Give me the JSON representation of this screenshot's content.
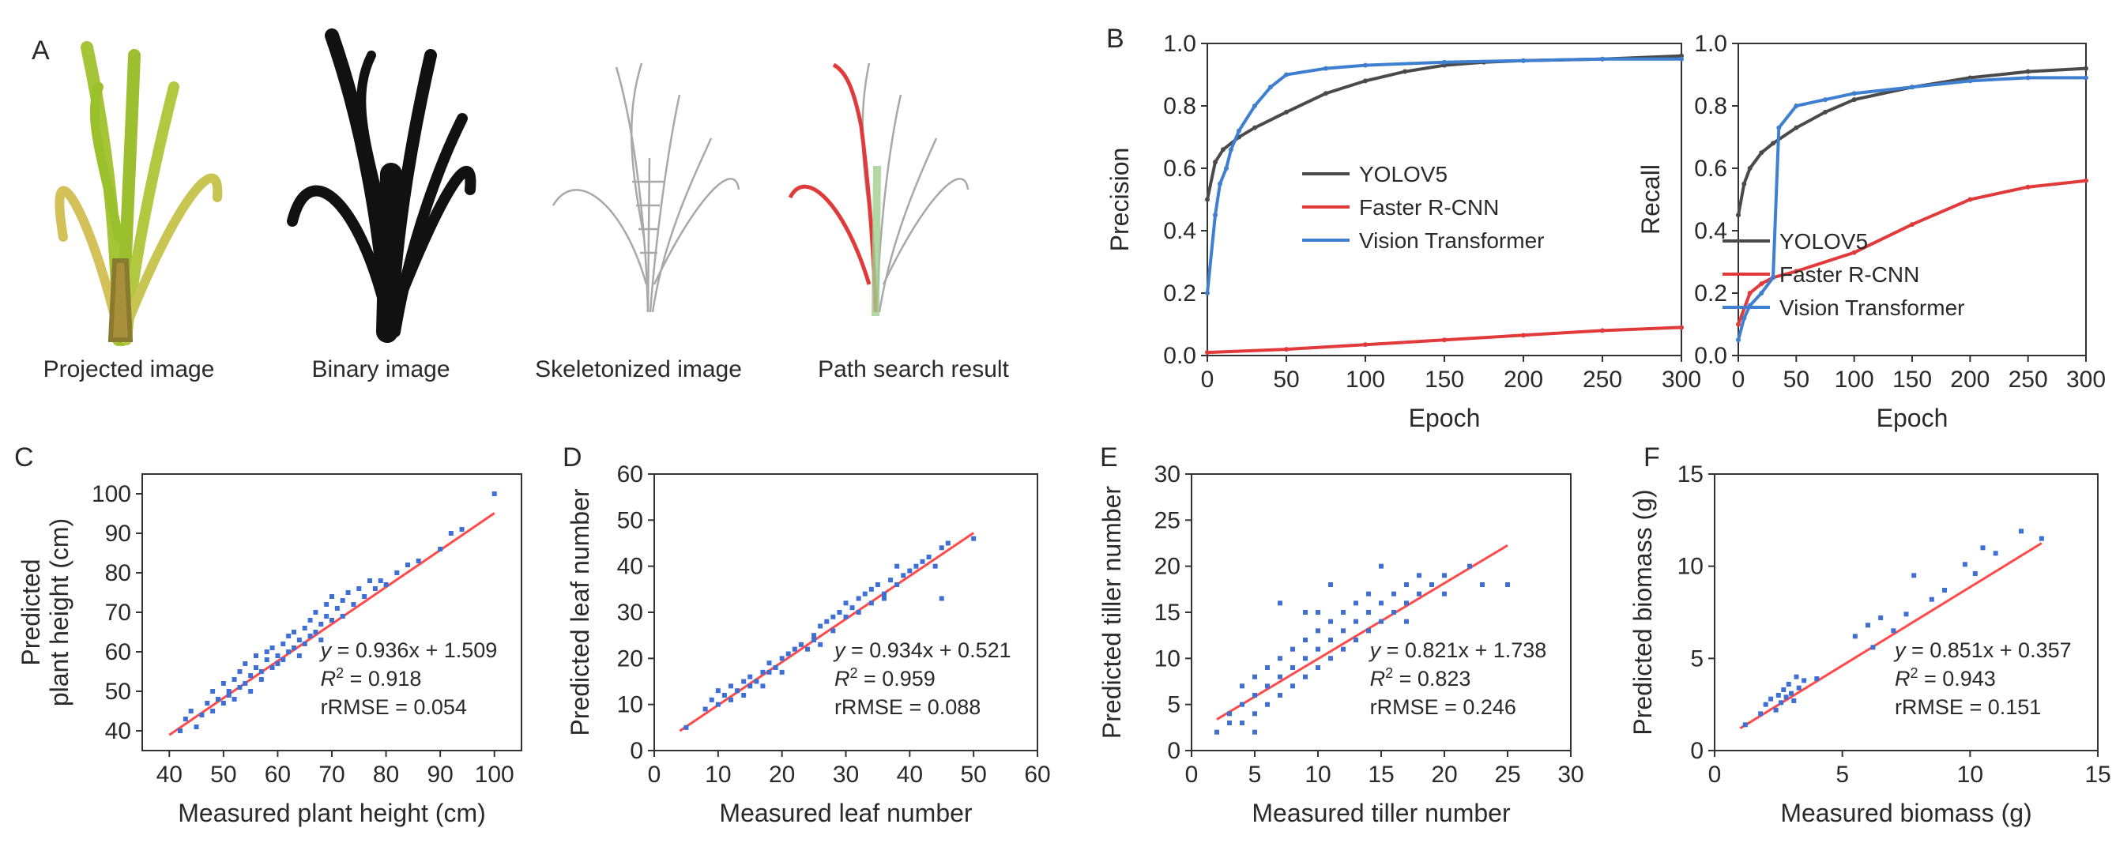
{
  "panel_a": {
    "letter": "A",
    "captions": [
      "Projected image",
      "Binary image",
      "Skeletonized image",
      "Path search result"
    ]
  },
  "colors": {
    "yolo": "#4a4a4a",
    "frcnn": "#e03a3a",
    "vit": "#3f7fd0",
    "scatter": "#3d6fd6",
    "fit": "#ff4a4a",
    "plant_green": "#9fc43a",
    "plant_yellow": "#d8c25a",
    "plant_base": "#a88f3a"
  },
  "chart_data": [
    {
      "id": "B1",
      "letter": "B",
      "type": "line",
      "title": "",
      "xlabel": "Epoch",
      "ylabel": "Precision",
      "xlim": [
        0,
        300
      ],
      "ylim": [
        0,
        1.0
      ],
      "xticks": [
        0,
        50,
        100,
        150,
        200,
        250,
        300
      ],
      "yticks": [
        0.0,
        0.2,
        0.4,
        0.6,
        0.8,
        1.0
      ],
      "ytick_labels": [
        "0.0",
        "0.2",
        "0.4",
        "0.6",
        "0.8",
        "1.0"
      ],
      "legend_position": "middle-right",
      "series": [
        {
          "name": "YOLOV5",
          "color_key": "yolo",
          "x": [
            0,
            5,
            10,
            20,
            30,
            50,
            75,
            100,
            125,
            150,
            175,
            200,
            250,
            300
          ],
          "y": [
            0.5,
            0.62,
            0.66,
            0.7,
            0.73,
            0.78,
            0.84,
            0.88,
            0.91,
            0.93,
            0.94,
            0.945,
            0.95,
            0.96
          ]
        },
        {
          "name": "Faster R-CNN",
          "color_key": "frcnn",
          "x": [
            0,
            50,
            100,
            150,
            200,
            250,
            300
          ],
          "y": [
            0.01,
            0.02,
            0.035,
            0.05,
            0.065,
            0.08,
            0.09
          ]
        },
        {
          "name": "Vision Transformer",
          "color_key": "vit",
          "x": [
            0,
            5,
            8,
            12,
            15,
            20,
            30,
            40,
            50,
            75,
            100,
            150,
            200,
            250,
            300
          ],
          "y": [
            0.2,
            0.45,
            0.55,
            0.6,
            0.66,
            0.72,
            0.8,
            0.86,
            0.9,
            0.92,
            0.93,
            0.94,
            0.945,
            0.95,
            0.95
          ]
        }
      ]
    },
    {
      "id": "B2",
      "letter": "",
      "type": "line",
      "title": "",
      "xlabel": "Epoch",
      "ylabel": "Recall",
      "xlim": [
        0,
        300
      ],
      "ylim": [
        0,
        1.0
      ],
      "xticks": [
        0,
        50,
        100,
        150,
        200,
        250,
        300
      ],
      "yticks": [
        0.0,
        0.2,
        0.4,
        0.6,
        0.8,
        1.0
      ],
      "ytick_labels": [
        "0.0",
        "0.2",
        "0.4",
        "0.6",
        "0.8",
        "1.0"
      ],
      "legend_position": "bottom-right",
      "series": [
        {
          "name": "YOLOV5",
          "color_key": "yolo",
          "x": [
            0,
            5,
            10,
            20,
            30,
            50,
            75,
            100,
            150,
            200,
            250,
            300
          ],
          "y": [
            0.45,
            0.55,
            0.6,
            0.65,
            0.68,
            0.73,
            0.78,
            0.82,
            0.86,
            0.89,
            0.91,
            0.92
          ]
        },
        {
          "name": "Faster R-CNN",
          "color_key": "frcnn",
          "x": [
            0,
            10,
            20,
            30,
            50,
            100,
            150,
            200,
            250,
            300
          ],
          "y": [
            0.1,
            0.2,
            0.23,
            0.25,
            0.27,
            0.33,
            0.42,
            0.5,
            0.54,
            0.56
          ]
        },
        {
          "name": "Vision Transformer",
          "color_key": "vit",
          "x": [
            0,
            5,
            10,
            20,
            30,
            35,
            50,
            75,
            100,
            150,
            200,
            250,
            300
          ],
          "y": [
            0.05,
            0.12,
            0.16,
            0.2,
            0.25,
            0.73,
            0.8,
            0.82,
            0.84,
            0.86,
            0.88,
            0.89,
            0.89
          ]
        }
      ]
    },
    {
      "id": "C",
      "letter": "C",
      "type": "scatter",
      "xlabel": "Measured plant height (cm)",
      "ylabel": [
        "Predicted",
        "plant height (cm)"
      ],
      "xlim": [
        35,
        105
      ],
      "ylim": [
        35,
        105
      ],
      "xticks": [
        40,
        50,
        60,
        70,
        80,
        90,
        100
      ],
      "yticks": [
        40,
        50,
        60,
        70,
        80,
        90,
        100
      ],
      "fit": {
        "slope": 0.936,
        "intercept": 1.509,
        "x_range": [
          40,
          100
        ]
      },
      "annotation": {
        "equation": "= 0.936x + 1.509",
        "r2": "= 0.918",
        "rrmse": "rRMSE = 0.054"
      },
      "points": [
        [
          42,
          40
        ],
        [
          43,
          43
        ],
        [
          44,
          45
        ],
        [
          45,
          41
        ],
        [
          46,
          44
        ],
        [
          47,
          47
        ],
        [
          48,
          45
        ],
        [
          48,
          50
        ],
        [
          49,
          48
        ],
        [
          50,
          47
        ],
        [
          50,
          52
        ],
        [
          51,
          50
        ],
        [
          51,
          49
        ],
        [
          52,
          53
        ],
        [
          52,
          48
        ],
        [
          53,
          55
        ],
        [
          53,
          51
        ],
        [
          54,
          52
        ],
        [
          54,
          57
        ],
        [
          55,
          54
        ],
        [
          55,
          50
        ],
        [
          56,
          56
        ],
        [
          56,
          59
        ],
        [
          57,
          55
        ],
        [
          57,
          53
        ],
        [
          58,
          58
        ],
        [
          58,
          60
        ],
        [
          59,
          56
        ],
        [
          59,
          61
        ],
        [
          60,
          59
        ],
        [
          60,
          57
        ],
        [
          61,
          62
        ],
        [
          61,
          58
        ],
        [
          62,
          60
        ],
        [
          62,
          64
        ],
        [
          63,
          61
        ],
        [
          63,
          65
        ],
        [
          64,
          63
        ],
        [
          64,
          59
        ],
        [
          65,
          66
        ],
        [
          65,
          62
        ],
        [
          66,
          64
        ],
        [
          66,
          68
        ],
        [
          67,
          65
        ],
        [
          67,
          70
        ],
        [
          68,
          67
        ],
        [
          68,
          63
        ],
        [
          69,
          69
        ],
        [
          69,
          72
        ],
        [
          70,
          68
        ],
        [
          70,
          74
        ],
        [
          71,
          71
        ],
        [
          72,
          73
        ],
        [
          72,
          69
        ],
        [
          73,
          75
        ],
        [
          74,
          72
        ],
        [
          75,
          76
        ],
        [
          76,
          74
        ],
        [
          77,
          78
        ],
        [
          78,
          76
        ],
        [
          79,
          78
        ],
        [
          80,
          77
        ],
        [
          82,
          80
        ],
        [
          84,
          82
        ],
        [
          86,
          83
        ],
        [
          90,
          86
        ],
        [
          92,
          90
        ],
        [
          94,
          91
        ],
        [
          100,
          100
        ]
      ]
    },
    {
      "id": "D",
      "letter": "D",
      "type": "scatter",
      "xlabel": "Measured leaf number",
      "ylabel": [
        "Predicted leaf number"
      ],
      "xlim": [
        0,
        60
      ],
      "ylim": [
        0,
        60
      ],
      "xticks": [
        0,
        10,
        20,
        30,
        40,
        50,
        60
      ],
      "yticks": [
        0,
        10,
        20,
        30,
        40,
        50,
        60
      ],
      "fit": {
        "slope": 0.934,
        "intercept": 0.521,
        "x_range": [
          4,
          50
        ]
      },
      "annotation": {
        "equation": "= 0.934x + 0.521",
        "r2": "= 0.959",
        "rrmse": "rRMSE = 0.088"
      },
      "points": [
        [
          5,
          5
        ],
        [
          8,
          9
        ],
        [
          9,
          11
        ],
        [
          10,
          10
        ],
        [
          10,
          13
        ],
        [
          11,
          12
        ],
        [
          12,
          11
        ],
        [
          12,
          14
        ],
        [
          13,
          13
        ],
        [
          14,
          15
        ],
        [
          14,
          12
        ],
        [
          15,
          16
        ],
        [
          15,
          14
        ],
        [
          16,
          15
        ],
        [
          17,
          17
        ],
        [
          17,
          14
        ],
        [
          18,
          19
        ],
        [
          18,
          17
        ],
        [
          19,
          18
        ],
        [
          20,
          20
        ],
        [
          20,
          17
        ],
        [
          21,
          21
        ],
        [
          22,
          22
        ],
        [
          23,
          23
        ],
        [
          24,
          22
        ],
        [
          25,
          25
        ],
        [
          25,
          24
        ],
        [
          26,
          27
        ],
        [
          26,
          23
        ],
        [
          27,
          28
        ],
        [
          28,
          26
        ],
        [
          28,
          29
        ],
        [
          29,
          30
        ],
        [
          30,
          29
        ],
        [
          30,
          32
        ],
        [
          31,
          31
        ],
        [
          32,
          30
        ],
        [
          32,
          33
        ],
        [
          33,
          34
        ],
        [
          34,
          32
        ],
        [
          34,
          35
        ],
        [
          35,
          36
        ],
        [
          36,
          34
        ],
        [
          36,
          33
        ],
        [
          37,
          37
        ],
        [
          38,
          36
        ],
        [
          38,
          40
        ],
        [
          39,
          38
        ],
        [
          40,
          39
        ],
        [
          41,
          40
        ],
        [
          42,
          41
        ],
        [
          43,
          42
        ],
        [
          44,
          40
        ],
        [
          45,
          44
        ],
        [
          45,
          33
        ],
        [
          46,
          45
        ],
        [
          50,
          46
        ]
      ]
    },
    {
      "id": "E",
      "letter": "E",
      "type": "scatter",
      "xlabel": "Measured tiller number",
      "ylabel": [
        "Predicted tiller number"
      ],
      "xlim": [
        0,
        30
      ],
      "ylim": [
        0,
        30
      ],
      "xticks": [
        0,
        5,
        10,
        15,
        20,
        25,
        30
      ],
      "yticks": [
        0,
        5,
        10,
        15,
        20,
        25,
        30
      ],
      "fit": {
        "slope": 0.821,
        "intercept": 1.738,
        "x_range": [
          2,
          25
        ]
      },
      "annotation": {
        "equation": "= 0.821x + 1.738",
        "r2": "= 0.823",
        "rrmse": "rRMSE = 0.246"
      },
      "points": [
        [
          2,
          2
        ],
        [
          3,
          3
        ],
        [
          3,
          4
        ],
        [
          4,
          3
        ],
        [
          4,
          5
        ],
        [
          4,
          7
        ],
        [
          5,
          4
        ],
        [
          5,
          6
        ],
        [
          5,
          8
        ],
        [
          5,
          2
        ],
        [
          6,
          5
        ],
        [
          6,
          7
        ],
        [
          6,
          9
        ],
        [
          7,
          6
        ],
        [
          7,
          8
        ],
        [
          7,
          10
        ],
        [
          7,
          16
        ],
        [
          8,
          7
        ],
        [
          8,
          9
        ],
        [
          8,
          11
        ],
        [
          9,
          8
        ],
        [
          9,
          10
        ],
        [
          9,
          12
        ],
        [
          9,
          15
        ],
        [
          10,
          9
        ],
        [
          10,
          11
        ],
        [
          10,
          13
        ],
        [
          10,
          15
        ],
        [
          11,
          10
        ],
        [
          11,
          12
        ],
        [
          11,
          14
        ],
        [
          11,
          18
        ],
        [
          12,
          11
        ],
        [
          12,
          13
        ],
        [
          12,
          15
        ],
        [
          13,
          12
        ],
        [
          13,
          14
        ],
        [
          13,
          16
        ],
        [
          14,
          13
        ],
        [
          14,
          15
        ],
        [
          14,
          17
        ],
        [
          15,
          14
        ],
        [
          15,
          16
        ],
        [
          15,
          20
        ],
        [
          16,
          15
        ],
        [
          16,
          17
        ],
        [
          17,
          16
        ],
        [
          17,
          18
        ],
        [
          17,
          14
        ],
        [
          18,
          17
        ],
        [
          18,
          19
        ],
        [
          19,
          18
        ],
        [
          20,
          19
        ],
        [
          20,
          17
        ],
        [
          22,
          20
        ],
        [
          23,
          18
        ],
        [
          25,
          18
        ]
      ]
    },
    {
      "id": "F",
      "letter": "F",
      "type": "scatter",
      "xlabel": "Measured biomass (g)",
      "ylabel": [
        "Predicted biomass (g)"
      ],
      "xlim": [
        0,
        15
      ],
      "ylim": [
        0,
        15
      ],
      "xticks": [
        0,
        5,
        10,
        15
      ],
      "yticks": [
        0,
        5,
        10,
        15
      ],
      "xtick_labels": [
        "0",
        "5",
        "10",
        "15"
      ],
      "fit": {
        "slope": 0.851,
        "intercept": 0.357,
        "x_range": [
          1,
          12.8
        ]
      },
      "annotation": {
        "equation": "= 0.851x + 0.357",
        "r2": "= 0.943",
        "rrmse": "rRMSE = 0.151"
      },
      "points": [
        [
          1.2,
          1.4
        ],
        [
          1.8,
          2.0
        ],
        [
          2.0,
          2.5
        ],
        [
          2.2,
          2.8
        ],
        [
          2.4,
          2.2
        ],
        [
          2.5,
          3.0
        ],
        [
          2.6,
          2.6
        ],
        [
          2.7,
          3.3
        ],
        [
          2.8,
          2.9
        ],
        [
          2.9,
          3.6
        ],
        [
          3.0,
          3.1
        ],
        [
          3.1,
          2.7
        ],
        [
          3.2,
          4.0
        ],
        [
          3.3,
          3.4
        ],
        [
          3.5,
          3.8
        ],
        [
          4.0,
          3.9
        ],
        [
          5.5,
          6.2
        ],
        [
          6.0,
          6.8
        ],
        [
          6.2,
          5.6
        ],
        [
          6.5,
          7.2
        ],
        [
          7.0,
          6.5
        ],
        [
          7.5,
          7.4
        ],
        [
          7.8,
          9.5
        ],
        [
          8.5,
          8.2
        ],
        [
          9.0,
          8.7
        ],
        [
          9.8,
          10.1
        ],
        [
          10.2,
          9.6
        ],
        [
          10.5,
          11.0
        ],
        [
          11.0,
          10.7
        ],
        [
          12.0,
          11.9
        ],
        [
          12.8,
          11.5
        ]
      ]
    }
  ]
}
